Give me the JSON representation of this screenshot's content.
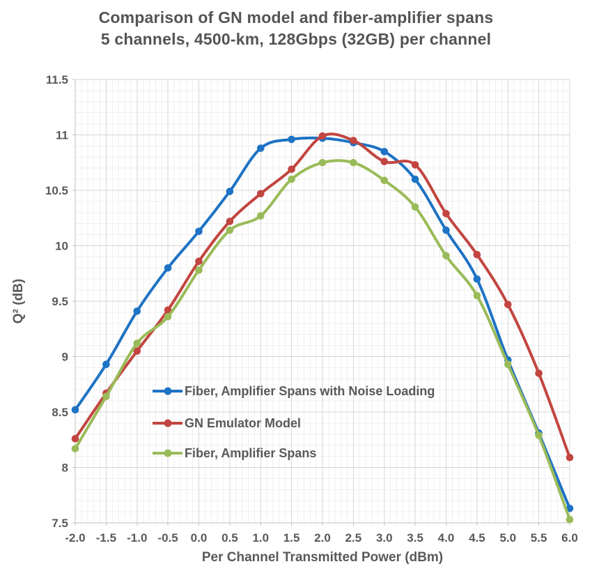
{
  "chart_data": {
    "type": "line",
    "title_lines": [
      "Comparison of GN model and fiber-amplifier spans",
      "5 channels, 4500-km, 128Gbps (32GB) per channel"
    ],
    "xlabel": "Per Channel Transmitted Power (dBm)",
    "ylabel": "Q² (dB)",
    "xlim": [
      -2.0,
      6.0
    ],
    "ylim": [
      7.5,
      11.5
    ],
    "x_ticks": [
      "-2.0",
      "-1.5",
      "-1.0",
      "-0.5",
      "0.0",
      "0.5",
      "1.0",
      "1.5",
      "2.0",
      "2.5",
      "3.0",
      "3.5",
      "4.0",
      "4.5",
      "5.0",
      "5.5",
      "6.0"
    ],
    "y_ticks": [
      "11.5",
      "11",
      "10.5",
      "10",
      "9.5",
      "9",
      "8.5",
      "8",
      "7.5"
    ],
    "grid": true,
    "minor_grid_step": 0.1,
    "major_grid_step": 0.5,
    "smooth_lines": true,
    "legend_position": "inside lower-left",
    "x": [
      -2.0,
      -1.5,
      -1.0,
      -0.5,
      0.0,
      0.5,
      1.0,
      1.5,
      2.0,
      2.5,
      3.0,
      3.5,
      4.0,
      4.5,
      5.0,
      5.5,
      6.0
    ],
    "series": [
      {
        "name": "Fiber, Amplifier Spans with Noise Loading",
        "color": "#1E73C4",
        "values": [
          8.52,
          8.93,
          9.41,
          9.8,
          10.13,
          10.49,
          10.88,
          10.96,
          10.97,
          10.93,
          10.85,
          10.6,
          10.14,
          9.7,
          8.97,
          8.31,
          7.63
        ]
      },
      {
        "name": "GN Emulator Model",
        "color": "#C2453F",
        "values": [
          8.26,
          8.67,
          9.05,
          9.42,
          9.86,
          10.22,
          10.47,
          10.69,
          10.99,
          10.95,
          10.76,
          10.73,
          10.29,
          9.92,
          9.47,
          8.85,
          8.09
        ]
      },
      {
        "name": "Fiber, Amplifier Spans",
        "color": "#9ABB59",
        "values": [
          8.17,
          8.64,
          9.12,
          9.36,
          9.78,
          10.14,
          10.27,
          10.6,
          10.75,
          10.75,
          10.59,
          10.35,
          9.91,
          9.55,
          8.93,
          8.29,
          7.53
        ]
      }
    ],
    "colors": {
      "text": "#595959",
      "title_text": "#545454",
      "major_grid": "#D6D6D6",
      "minor_grid": "#EFEFEF",
      "axis": "#BFBFBF"
    }
  }
}
